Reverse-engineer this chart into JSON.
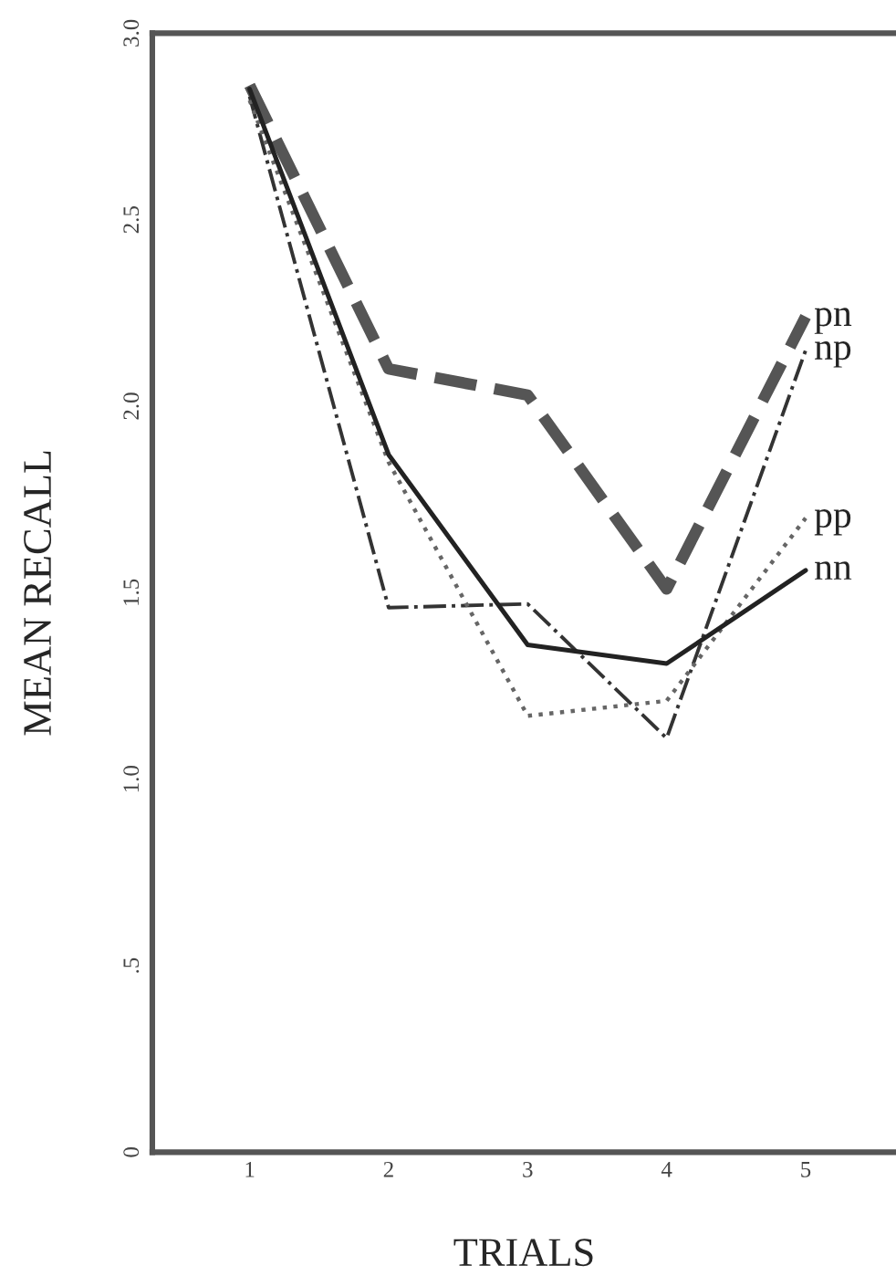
{
  "chart_data": {
    "type": "line",
    "xlabel": "TRIALS",
    "ylabel": "MEAN RECALL",
    "x": [
      1,
      2,
      3,
      4,
      5
    ],
    "series": [
      {
        "name": "pn",
        "color": "#555555",
        "line_style": "dashed",
        "values": [
          2.86,
          2.1,
          2.03,
          1.51,
          2.24
        ]
      },
      {
        "name": "np",
        "color": "#333333",
        "line_style": "dashdot",
        "values": [
          2.83,
          1.46,
          1.47,
          1.11,
          2.15
        ]
      },
      {
        "name": "pp",
        "color": "#666666",
        "line_style": "dotted",
        "values": [
          2.82,
          1.85,
          1.17,
          1.21,
          1.7
        ]
      },
      {
        "name": "nn",
        "color": "#222222",
        "line_style": "solid",
        "values": [
          2.85,
          1.87,
          1.36,
          1.31,
          1.56
        ]
      }
    ],
    "xlim": [
      0.3,
      5.65
    ],
    "ylim": [
      0,
      3.0
    ],
    "xticks": [
      1,
      2,
      3,
      4,
      5
    ],
    "yticks": [
      0,
      {
        "value": 0.5,
        "label": ".5"
      },
      {
        "value": 1.0,
        "label": "1.0"
      },
      1.5,
      {
        "value": 2.0,
        "label": "2.0"
      },
      2.5,
      {
        "value": 3.0,
        "label": "3.0"
      }
    ],
    "grid": false,
    "legend": false,
    "marker": "none"
  }
}
